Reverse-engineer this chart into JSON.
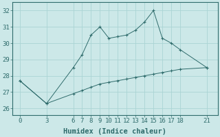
{
  "line1_x": [
    0,
    3,
    6,
    7,
    8,
    9,
    10,
    11,
    12,
    13,
    14,
    15,
    16,
    17,
    18,
    21
  ],
  "line1_y": [
    27.7,
    26.3,
    28.5,
    29.3,
    30.5,
    31.0,
    30.3,
    30.4,
    30.5,
    30.8,
    31.3,
    32.0,
    30.3,
    30.0,
    29.6,
    28.5
  ],
  "line2_x": [
    0,
    3,
    6,
    7,
    8,
    9,
    10,
    11,
    12,
    13,
    14,
    15,
    16,
    17,
    18,
    21
  ],
  "line2_y": [
    27.7,
    26.3,
    26.9,
    27.1,
    27.3,
    27.5,
    27.6,
    27.7,
    27.8,
    27.9,
    28.0,
    28.1,
    28.2,
    28.3,
    28.4,
    28.5
  ],
  "line_color": "#2e6b6b",
  "bg_color": "#cce8e8",
  "grid_color": "#aad4d4",
  "xlabel": "Humidex (Indice chaleur)",
  "xticks": [
    0,
    3,
    6,
    7,
    8,
    9,
    10,
    11,
    12,
    13,
    14,
    15,
    16,
    17,
    18,
    21
  ],
  "yticks": [
    26,
    27,
    28,
    29,
    30,
    31,
    32
  ],
  "ylim": [
    25.6,
    32.5
  ],
  "xlim": [
    -0.8,
    22.2
  ],
  "tick_fontsize": 6.5,
  "label_fontsize": 7.5,
  "marker_size": 2.2
}
